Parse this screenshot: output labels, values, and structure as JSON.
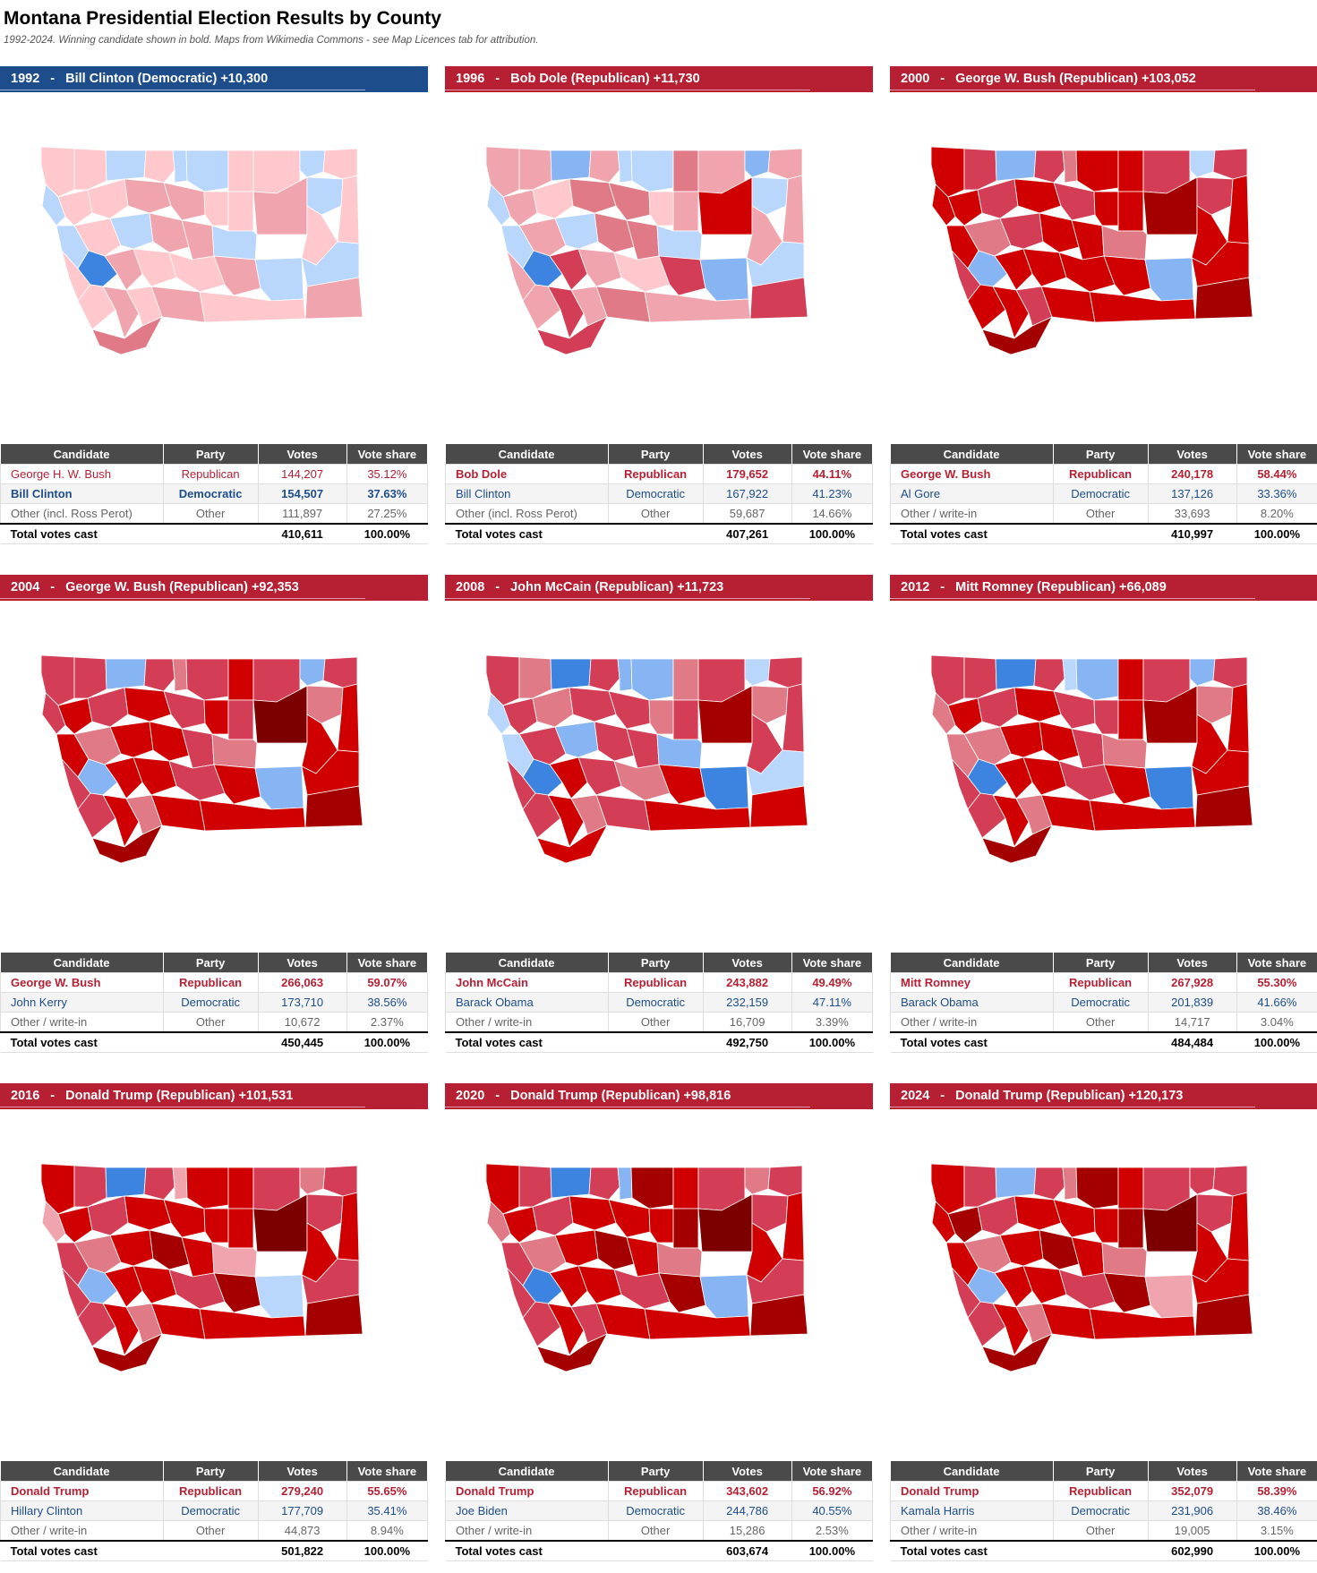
{
  "header": {
    "title": "Montana Presidential Election Results by County",
    "subtitle": "1992-2024. Winning candidate shown in bold. Maps from Wikimedia Commons - see Map Licences tab for attribution."
  },
  "table_headers": [
    "Candidate",
    "Party",
    "Votes",
    "Vote share"
  ],
  "colors": {
    "republican": "#b71f33",
    "democratic": "#1e4d8c",
    "header_gray": "#4a4a4a",
    "map_shades": {
      "R1": "#ffc8cc",
      "R2": "#f0a5ae",
      "R3": "#e07a87",
      "R4": "#d33d55",
      "R5": "#d00000",
      "R6": "#a40000",
      "R7": "#7c0000",
      "D1": "#b9d6fd",
      "D2": "#87b4f3",
      "D3": "#3d84e0"
    }
  },
  "elections": [
    {
      "year": "1992",
      "separator": "-",
      "winner_party": "D",
      "headline": "Bill Clinton (Democratic) +10,300",
      "map": [
        "R1",
        "R1",
        "D1",
        "R1",
        "D1",
        "D1",
        "R1",
        "R1",
        "D1",
        "R1",
        "D1",
        "R1",
        "R1",
        "R2",
        "R2",
        "R1",
        "R1",
        "R2",
        "D1",
        "R1",
        "D1",
        "R1",
        "D1",
        "R2",
        "R2",
        "D1",
        "R1",
        "R1",
        "D3",
        "R2",
        "R1",
        "R1",
        "R2",
        "D1",
        "D1",
        "R1",
        "R2",
        "R1",
        "R2",
        "R2",
        "R1",
        "R3"
      ],
      "rows": [
        {
          "candidate": "George H. W. Bush",
          "party": "Republican",
          "votes": "144,207",
          "share": "35.12%",
          "p": "R",
          "win": false
        },
        {
          "candidate": "Bill Clinton",
          "party": "Democratic",
          "votes": "154,507",
          "share": "37.63%",
          "p": "D",
          "win": true
        },
        {
          "candidate": "Other (incl. Ross Perot)",
          "party": "Other",
          "votes": "111,897",
          "share": "27.25%",
          "p": "O",
          "win": false
        }
      ],
      "total": {
        "label": "Total votes cast",
        "votes": "410,611",
        "share": "100.00%"
      }
    },
    {
      "year": "1996",
      "separator": "-",
      "winner_party": "R",
      "headline": "Bob Dole (Republican) +11,730",
      "map": [
        "R2",
        "R2",
        "D2",
        "R2",
        "D1",
        "D1",
        "R3",
        "R2",
        "D2",
        "R2",
        "D1",
        "R2",
        "R1",
        "R3",
        "R3",
        "R1",
        "R2",
        "R5",
        "D1",
        "R2",
        "D1",
        "R2",
        "D1",
        "R3",
        "R3",
        "D1",
        "R2",
        "R2",
        "D3",
        "R4",
        "R2",
        "R1",
        "R4",
        "D2",
        "D1",
        "R2",
        "R4",
        "R2",
        "R3",
        "R4",
        "R2",
        "R4"
      ],
      "rows": [
        {
          "candidate": "Bob Dole",
          "party": "Republican",
          "votes": "179,652",
          "share": "44.11%",
          "p": "R",
          "win": true
        },
        {
          "candidate": "Bill Clinton",
          "party": "Democratic",
          "votes": "167,922",
          "share": "41.23%",
          "p": "D",
          "win": false
        },
        {
          "candidate": "Other (incl. Ross Perot)",
          "party": "Other",
          "votes": "59,687",
          "share": "14.66%",
          "p": "O",
          "win": false
        }
      ],
      "total": {
        "label": "Total votes cast",
        "votes": "407,261",
        "share": "100.00%"
      }
    },
    {
      "year": "2000",
      "separator": "-",
      "winner_party": "R",
      "headline": "George W. Bush (Republican) +103,052",
      "map": [
        "R5",
        "R4",
        "D2",
        "R4",
        "R3",
        "R5",
        "R5",
        "R4",
        "D1",
        "R4",
        "R5",
        "R5",
        "R4",
        "R5",
        "R4",
        "R5",
        "R5",
        "R6",
        "R4",
        "R5",
        "R5",
        "R3",
        "R4",
        "R5",
        "R5",
        "R3",
        "R5",
        "R4",
        "D2",
        "R5",
        "R5",
        "R5",
        "R5",
        "D2",
        "R5",
        "R5",
        "R5",
        "R4",
        "R5",
        "R6",
        "R5",
        "R6"
      ],
      "rows": [
        {
          "candidate": "George W. Bush",
          "party": "Republican",
          "votes": "240,178",
          "share": "58.44%",
          "p": "R",
          "win": true
        },
        {
          "candidate": "Al Gore",
          "party": "Democratic",
          "votes": "137,126",
          "share": "33.36%",
          "p": "D",
          "win": false
        },
        {
          "candidate": "Other / write-in",
          "party": "Other",
          "votes": "33,693",
          "share": "8.20%",
          "p": "O",
          "win": false
        }
      ],
      "total": {
        "label": "Total votes cast",
        "votes": "410,997",
        "share": "100.00%"
      }
    },
    {
      "year": "2004",
      "separator": "-",
      "winner_party": "R",
      "headline": "George W. Bush (Republican) +92,353",
      "map": [
        "R4",
        "R4",
        "D2",
        "R4",
        "R3",
        "R4",
        "R5",
        "R4",
        "D2",
        "R4",
        "R4",
        "R5",
        "R4",
        "R5",
        "R4",
        "R5",
        "R4",
        "R7",
        "R3",
        "R5",
        "R5",
        "R3",
        "R5",
        "R5",
        "R4",
        "R3",
        "R5",
        "R4",
        "D2",
        "R5",
        "R5",
        "R4",
        "R5",
        "D2",
        "R5",
        "R4",
        "R5",
        "R3",
        "R5",
        "R6",
        "R5",
        "R6"
      ],
      "rows": [
        {
          "candidate": "George W. Bush",
          "party": "Republican",
          "votes": "266,063",
          "share": "59.07%",
          "p": "R",
          "win": true
        },
        {
          "candidate": "John Kerry",
          "party": "Democratic",
          "votes": "173,710",
          "share": "38.56%",
          "p": "D",
          "win": false
        },
        {
          "candidate": "Other / write-in",
          "party": "Other",
          "votes": "10,672",
          "share": "2.37%",
          "p": "O",
          "win": false
        }
      ],
      "total": {
        "label": "Total votes cast",
        "votes": "450,445",
        "share": "100.00%"
      }
    },
    {
      "year": "2008",
      "separator": "-",
      "winner_party": "R",
      "headline": "John McCain (Republican) +11,723",
      "map": [
        "R4",
        "R3",
        "D3",
        "R4",
        "D2",
        "D2",
        "R3",
        "R4",
        "D1",
        "R4",
        "D1",
        "R4",
        "R3",
        "R4",
        "R4",
        "R3",
        "R4",
        "R6",
        "R3",
        "R4",
        "D1",
        "R4",
        "D2",
        "R4",
        "R4",
        "D2",
        "R4",
        "R4",
        "D3",
        "R5",
        "R4",
        "R3",
        "R5",
        "D3",
        "D1",
        "R4",
        "R5",
        "R3",
        "R4",
        "R5",
        "R5",
        "R5"
      ],
      "rows": [
        {
          "candidate": "John McCain",
          "party": "Republican",
          "votes": "243,882",
          "share": "49.49%",
          "p": "R",
          "win": true
        },
        {
          "candidate": "Barack Obama",
          "party": "Democratic",
          "votes": "232,159",
          "share": "47.11%",
          "p": "D",
          "win": false
        },
        {
          "candidate": "Other / write-in",
          "party": "Other",
          "votes": "16,709",
          "share": "3.39%",
          "p": "O",
          "win": false
        }
      ],
      "total": {
        "label": "Total votes cast",
        "votes": "492,750",
        "share": "100.00%"
      }
    },
    {
      "year": "2012",
      "separator": "-",
      "winner_party": "R",
      "headline": "Mitt Romney (Republican) +66,089",
      "map": [
        "R4",
        "R4",
        "D3",
        "R4",
        "D1",
        "D2",
        "R5",
        "R4",
        "D2",
        "R4",
        "R3",
        "R5",
        "R4",
        "R5",
        "R4",
        "R4",
        "R5",
        "R6",
        "R3",
        "R5",
        "R3",
        "R3",
        "R5",
        "R5",
        "R4",
        "R3",
        "R5",
        "R4",
        "D3",
        "R5",
        "R5",
        "R4",
        "R5",
        "D3",
        "R5",
        "R4",
        "R5",
        "R3",
        "R5",
        "R6",
        "R5",
        "R6"
      ],
      "rows": [
        {
          "candidate": "Mitt Romney",
          "party": "Republican",
          "votes": "267,928",
          "share": "55.30%",
          "p": "R",
          "win": true
        },
        {
          "candidate": "Barack Obama",
          "party": "Democratic",
          "votes": "201,839",
          "share": "41.66%",
          "p": "D",
          "win": false
        },
        {
          "candidate": "Other / write-in",
          "party": "Other",
          "votes": "14,717",
          "share": "3.04%",
          "p": "O",
          "win": false
        }
      ],
      "total": {
        "label": "Total votes cast",
        "votes": "484,484",
        "share": "100.00%"
      }
    },
    {
      "year": "2016",
      "separator": "-",
      "winner_party": "R",
      "headline": "Donald Trump (Republican) +101,531",
      "map": [
        "R5",
        "R4",
        "D3",
        "R4",
        "R2",
        "R5",
        "R5",
        "R4",
        "R3",
        "R4",
        "R2",
        "R5",
        "R4",
        "R5",
        "R5",
        "R5",
        "R5",
        "R7",
        "R4",
        "R5",
        "R4",
        "R3",
        "R5",
        "R6",
        "R5",
        "R2",
        "R5",
        "R4",
        "D2",
        "R5",
        "R5",
        "R4",
        "R6",
        "D1",
        "R4",
        "R4",
        "R5",
        "R3",
        "R5",
        "R6",
        "R5",
        "R6"
      ],
      "rows": [
        {
          "candidate": "Donald Trump",
          "party": "Republican",
          "votes": "279,240",
          "share": "55.65%",
          "p": "R",
          "win": true
        },
        {
          "candidate": "Hillary Clinton",
          "party": "Democratic",
          "votes": "177,709",
          "share": "35.41%",
          "p": "D",
          "win": false
        },
        {
          "candidate": "Other / write-in",
          "party": "Other",
          "votes": "44,873",
          "share": "8.94%",
          "p": "O",
          "win": false
        }
      ],
      "total": {
        "label": "Total votes cast",
        "votes": "501,822",
        "share": "100.00%"
      }
    },
    {
      "year": "2020",
      "separator": "-",
      "winner_party": "R",
      "headline": "Donald Trump (Republican) +98,816",
      "map": [
        "R5",
        "R4",
        "D3",
        "R4",
        "D2",
        "R6",
        "R5",
        "R4",
        "R3",
        "R4",
        "R3",
        "R5",
        "R4",
        "R5",
        "R5",
        "R5",
        "R6",
        "R7",
        "R4",
        "R5",
        "R4",
        "R3",
        "R5",
        "R6",
        "R5",
        "R3",
        "R5",
        "R4",
        "D3",
        "R5",
        "R5",
        "R4",
        "R6",
        "D2",
        "R4",
        "R4",
        "R5",
        "R4",
        "R5",
        "R6",
        "R5",
        "R6"
      ],
      "rows": [
        {
          "candidate": "Donald Trump",
          "party": "Republican",
          "votes": "343,602",
          "share": "56.92%",
          "p": "R",
          "win": true
        },
        {
          "candidate": "Joe Biden",
          "party": "Democratic",
          "votes": "244,786",
          "share": "40.55%",
          "p": "D",
          "win": false
        },
        {
          "candidate": "Other / write-in",
          "party": "Other",
          "votes": "15,286",
          "share": "2.53%",
          "p": "O",
          "win": false
        }
      ],
      "total": {
        "label": "Total votes cast",
        "votes": "603,674",
        "share": "100.00%"
      }
    },
    {
      "year": "2024",
      "separator": "-",
      "winner_party": "R",
      "headline": "Donald Trump (Republican) +120,173",
      "map": [
        "R5",
        "R4",
        "D2",
        "R4",
        "R3",
        "R6",
        "R5",
        "R4",
        "R4",
        "R4",
        "R5",
        "R6",
        "R4",
        "R5",
        "R5",
        "R5",
        "R6",
        "R7",
        "R4",
        "R5",
        "R5",
        "R3",
        "R5",
        "R6",
        "R5",
        "R3",
        "R5",
        "R4",
        "D2",
        "R5",
        "R5",
        "R4",
        "R6",
        "R2",
        "R5",
        "R4",
        "R5",
        "R3",
        "R5",
        "R6",
        "R5",
        "R6"
      ],
      "rows": [
        {
          "candidate": "Donald Trump",
          "party": "Republican",
          "votes": "352,079",
          "share": "58.39%",
          "p": "R",
          "win": true
        },
        {
          "candidate": "Kamala Harris",
          "party": "Democratic",
          "votes": "231,906",
          "share": "38.46%",
          "p": "D",
          "win": false
        },
        {
          "candidate": "Other / write-in",
          "party": "Other",
          "votes": "19,005",
          "share": "3.15%",
          "p": "O",
          "win": false
        }
      ],
      "total": {
        "label": "Total votes cast",
        "votes": "602,990",
        "share": "100.00%"
      }
    }
  ]
}
